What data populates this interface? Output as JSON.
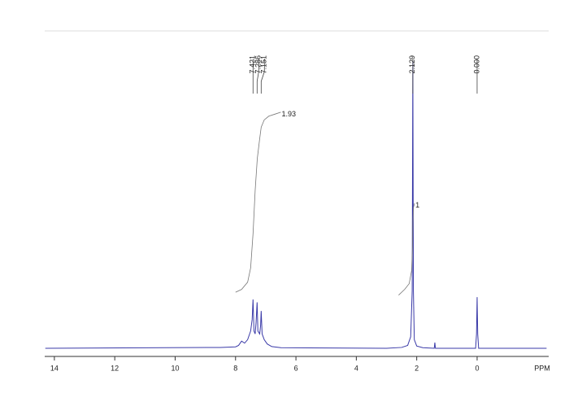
{
  "chart_data": {
    "type": "line",
    "x_label": "PPM",
    "xlim": [
      14.32,
      -2.37
    ],
    "xticks": [
      14,
      12,
      10,
      8,
      6,
      4,
      2,
      0
    ],
    "ylim": [
      0,
      100
    ],
    "series": [
      {
        "color": "#3a3aa8",
        "x": [
          14.3,
          8.5,
          8.0,
          7.9,
          7.8,
          7.7,
          7.6,
          7.5,
          7.45,
          7.421,
          7.39,
          7.35,
          7.32,
          7.286,
          7.26,
          7.2,
          7.17,
          7.151,
          7.12,
          7.05,
          6.95,
          6.8,
          6.5,
          3.0,
          2.5,
          2.3,
          2.2,
          2.15,
          2.129,
          2.11,
          2.08,
          2.0,
          1.8,
          1.42,
          1.4,
          1.38,
          0.05,
          0.02,
          0,
          -0.02,
          -0.05,
          -2.3
        ],
        "values": [
          0,
          0.3,
          0.5,
          1,
          2.5,
          1.8,
          3,
          6,
          10,
          17,
          6,
          5,
          9,
          16,
          6,
          5,
          8,
          13,
          5,
          3,
          1.5,
          0.6,
          0.2,
          0,
          0.3,
          1,
          4,
          20,
          100,
          20,
          3,
          0.8,
          0.2,
          0,
          2,
          0,
          0,
          5,
          17.8,
          5,
          0,
          0
        ]
      }
    ],
    "peaks": [
      7.421,
      7.286,
      7.151,
      2.129,
      {
        "value": 0,
        "label": "0.000"
      }
    ],
    "integrals": [
      {
        "value": 1.93,
        "x": [
          8.0,
          7.8,
          7.6,
          7.5,
          7.42,
          7.35,
          7.28,
          7.2,
          7.15,
          7.05,
          6.9,
          6.7,
          6.5
        ],
        "values": [
          19.5,
          20.5,
          23,
          28,
          40,
          55,
          66,
          73,
          77,
          79.5,
          80.8,
          81.5,
          82.2
        ]
      },
      {
        "value": 1.0,
        "x": [
          2.6,
          2.4,
          2.25,
          2.17,
          2.14,
          2.129,
          2.11,
          2.07
        ],
        "values": [
          18.5,
          20.5,
          22.5,
          27,
          35,
          44,
          49,
          50.5
        ]
      }
    ]
  }
}
